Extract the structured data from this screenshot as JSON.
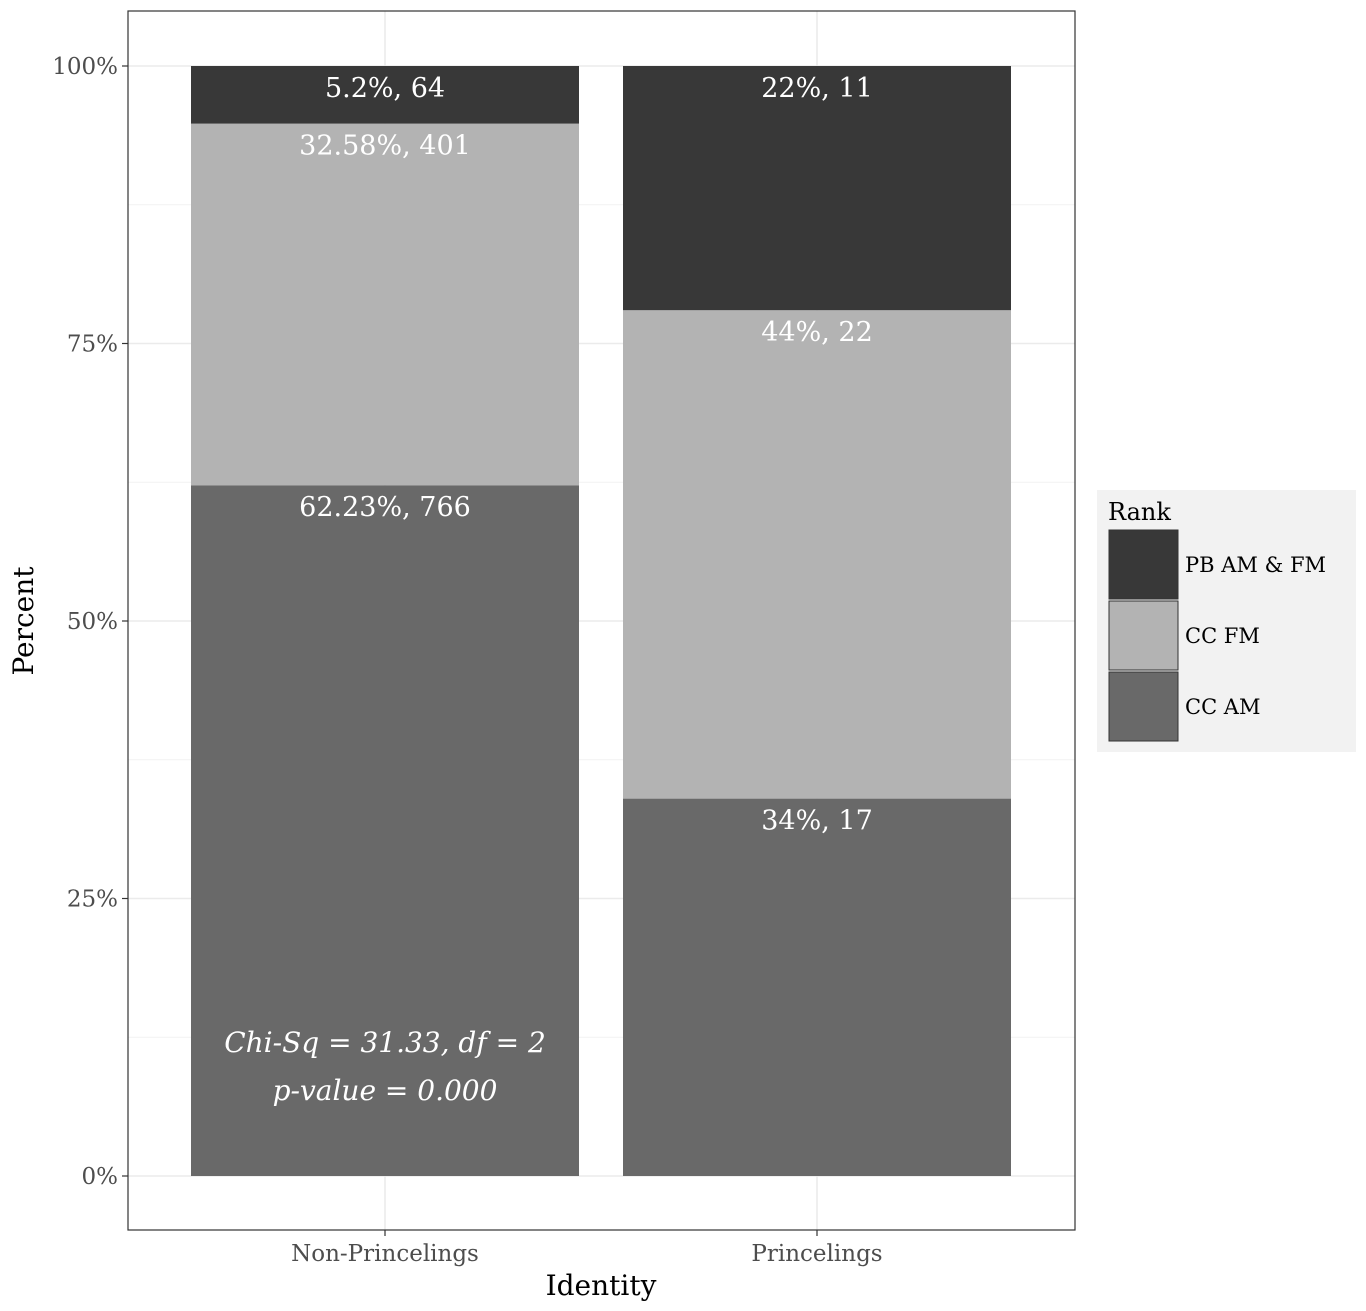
{
  "chart_data": {
    "type": "bar",
    "stacked": true,
    "xlabel": "Identity",
    "ylabel": "Percent",
    "categories": [
      "Non-Princelings",
      "Princelings"
    ],
    "ylim": [
      0,
      100
    ],
    "yticks": [
      "0%",
      "25%",
      "50%",
      "75%",
      "100%"
    ],
    "ytick_values": [
      0,
      25,
      50,
      75,
      100
    ],
    "series": [
      {
        "name": "CC AM",
        "color": "#696969",
        "values": [
          62.23,
          34
        ],
        "labels": [
          "62.23%, 766",
          "34%, 17"
        ]
      },
      {
        "name": "CC FM",
        "color": "#b3b3b3",
        "values": [
          32.58,
          44
        ],
        "labels": [
          "32.58%, 401",
          "44%, 22"
        ]
      },
      {
        "name": "PB AM & FM",
        "color": "#383838",
        "values": [
          5.2,
          22
        ],
        "labels": [
          "5.2%, 64",
          "22%, 11"
        ]
      }
    ],
    "legend": {
      "title": "Rank",
      "placement": "right",
      "order": [
        "PB AM & FM",
        "CC FM",
        "CC AM"
      ]
    },
    "annotations": [
      "Chi-Sq = 31.33, df = 2",
      "p-value = 0.000"
    ],
    "grid": true
  }
}
